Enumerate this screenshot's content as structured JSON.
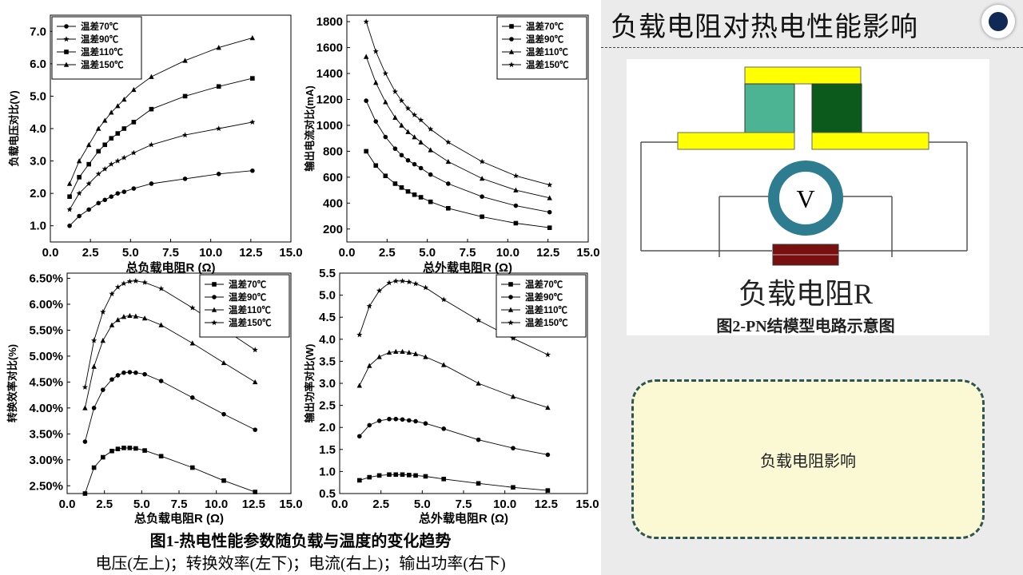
{
  "slide": {
    "title": "负载电阻对热电性能影响",
    "figure1_caption": "图1-热电性能参数随负载与温度的变化趋势",
    "figure1_subcaption": "电压(左上)；转换效率(左下)；电流(右上)；输出功率(右下)",
    "figure2_caption": "图2-PN结模型电路示意图",
    "load_label": "负载电阻R",
    "voltmeter_symbol": "V",
    "note_text": "负载电阻影响"
  },
  "colors": {
    "p_type": "#4cb493",
    "n_type": "#0c5a1c",
    "electrode": "#ffff00",
    "voltmeter_ring": "#2e7c8f",
    "load": "#781010",
    "title_dot": "#102a55",
    "note_fill": "#fbf8d4",
    "note_border": "#2c5557"
  },
  "chart_data": [
    {
      "type": "line",
      "ylabel": "负载电压对比(V)",
      "xlabel": "总负载电阻R (Ω)",
      "xlim": [
        0,
        15
      ],
      "ylim": [
        0.5,
        7.5
      ],
      "xticks": [
        0.0,
        2.5,
        5.0,
        7.5,
        10.0,
        12.5,
        15.0
      ],
      "yticks": [
        1.0,
        2.0,
        3.0,
        4.0,
        5.0,
        6.0,
        7.0
      ],
      "ytick_labels": [
        "1.0",
        "2.0",
        "3.0",
        "4.0",
        "5.0",
        "6.0",
        "7.0"
      ],
      "legend_position": "top-left",
      "x": [
        1.2,
        1.8,
        2.4,
        3.0,
        3.4,
        3.8,
        4.2,
        4.6,
        5.2,
        6.3,
        8.4,
        10.5,
        12.6
      ],
      "series": [
        {
          "name": "温差70℃",
          "marker": "circle",
          "values": [
            1.0,
            1.3,
            1.5,
            1.7,
            1.8,
            1.9,
            2.0,
            2.05,
            2.15,
            2.3,
            2.45,
            2.6,
            2.7
          ]
        },
        {
          "name": "温差90℃",
          "marker": "star",
          "values": [
            1.5,
            2.0,
            2.3,
            2.6,
            2.75,
            2.9,
            3.0,
            3.1,
            3.25,
            3.5,
            3.8,
            4.0,
            4.2
          ]
        },
        {
          "name": "温差110℃",
          "marker": "square",
          "values": [
            1.9,
            2.5,
            2.9,
            3.3,
            3.5,
            3.7,
            3.85,
            4.0,
            4.2,
            4.6,
            5.0,
            5.3,
            5.55
          ]
        },
        {
          "name": "温差150℃",
          "marker": "triangle",
          "values": [
            2.3,
            3.0,
            3.5,
            4.0,
            4.25,
            4.5,
            4.7,
            4.9,
            5.2,
            5.6,
            6.1,
            6.5,
            6.8
          ]
        }
      ]
    },
    {
      "type": "line",
      "ylabel": "输出电流对比(mA)",
      "xlabel": "总外载电阻R (Ω)",
      "xlim": [
        0,
        15
      ],
      "ylim": [
        100,
        1850
      ],
      "xticks": [
        0.0,
        2.5,
        5.0,
        7.5,
        10.0,
        12.5,
        15.0
      ],
      "yticks": [
        200,
        400,
        600,
        800,
        1000,
        1200,
        1400,
        1600,
        1800
      ],
      "ytick_labels": [
        "200",
        "400",
        "600",
        "800",
        "1000",
        "1200",
        "1400",
        "1600",
        "1800"
      ],
      "legend_position": "top-right",
      "x": [
        1.2,
        1.8,
        2.4,
        3.0,
        3.4,
        3.8,
        4.2,
        4.6,
        5.2,
        6.3,
        8.4,
        10.5,
        12.6
      ],
      "series": [
        {
          "name": "温差70℃",
          "marker": "square",
          "values": [
            800,
            690,
            610,
            550,
            520,
            490,
            465,
            445,
            410,
            360,
            295,
            245,
            210
          ]
        },
        {
          "name": "温差90℃",
          "marker": "circle",
          "values": [
            1190,
            1030,
            910,
            820,
            770,
            730,
            700,
            670,
            620,
            550,
            450,
            380,
            330
          ]
        },
        {
          "name": "温差110℃",
          "marker": "triangle",
          "values": [
            1530,
            1330,
            1180,
            1060,
            1000,
            950,
            910,
            870,
            810,
            720,
            590,
            500,
            440
          ]
        },
        {
          "name": "温差150℃",
          "marker": "star",
          "values": [
            1800,
            1570,
            1400,
            1260,
            1190,
            1130,
            1080,
            1040,
            970,
            870,
            720,
            610,
            540
          ]
        }
      ]
    },
    {
      "type": "line",
      "ylabel": "转换效率对比(%)",
      "xlabel": "总负载电阻R (Ω)",
      "xlim": [
        0,
        15
      ],
      "ylim": [
        2.35,
        6.6
      ],
      "xticks": [
        0.0,
        2.5,
        5.0,
        7.5,
        10.0,
        12.5,
        15.0
      ],
      "yticks": [
        2.5,
        3.0,
        3.5,
        4.0,
        4.5,
        5.0,
        5.5,
        6.0,
        6.5
      ],
      "ytick_labels": [
        "2.50%",
        "3.00%",
        "3.50%",
        "4.00%",
        "4.50%",
        "5.00%",
        "5.50%",
        "6.00%",
        "6.50%"
      ],
      "legend_position": "top-right",
      "x": [
        1.2,
        1.8,
        2.4,
        3.0,
        3.4,
        3.8,
        4.2,
        4.6,
        5.2,
        6.3,
        8.4,
        10.5,
        12.6
      ],
      "series": [
        {
          "name": "温差70℃",
          "marker": "square",
          "values": [
            2.35,
            2.85,
            3.05,
            3.17,
            3.21,
            3.23,
            3.23,
            3.22,
            3.18,
            3.07,
            2.85,
            2.6,
            2.38
          ]
        },
        {
          "name": "温差90℃",
          "marker": "circle",
          "values": [
            3.35,
            4.0,
            4.35,
            4.55,
            4.63,
            4.68,
            4.69,
            4.68,
            4.65,
            4.52,
            4.2,
            3.88,
            3.58
          ]
        },
        {
          "name": "温差110℃",
          "marker": "triangle",
          "values": [
            4.0,
            4.8,
            5.3,
            5.6,
            5.7,
            5.76,
            5.78,
            5.77,
            5.73,
            5.6,
            5.25,
            4.87,
            4.5
          ]
        },
        {
          "name": "温差150℃",
          "marker": "star",
          "values": [
            4.4,
            5.3,
            5.85,
            6.2,
            6.33,
            6.4,
            6.44,
            6.45,
            6.42,
            6.3,
            5.93,
            5.52,
            5.12
          ]
        }
      ]
    },
    {
      "type": "line",
      "ylabel": "输出功率对比(W)",
      "xlabel": "总外载电阻R (Ω)",
      "xlim": [
        0,
        15
      ],
      "ylim": [
        0.5,
        5.5
      ],
      "xticks": [
        0.0,
        2.5,
        5.0,
        7.5,
        10.0,
        12.5,
        15.0
      ],
      "yticks": [
        0.5,
        1.0,
        1.5,
        2.0,
        2.5,
        3.0,
        3.5,
        4.0,
        4.5,
        5.0,
        5.5
      ],
      "ytick_labels": [
        "0.5",
        "1.0",
        "1.5",
        "2.0",
        "2.5",
        "3.0",
        "3.5",
        "4.0",
        "4.5",
        "5.0",
        "5.5"
      ],
      "legend_position": "top-right",
      "x": [
        1.2,
        1.8,
        2.4,
        3.0,
        3.4,
        3.8,
        4.2,
        4.6,
        5.2,
        6.3,
        8.4,
        10.5,
        12.6
      ],
      "series": [
        {
          "name": "温差70℃",
          "marker": "square",
          "values": [
            0.8,
            0.87,
            0.91,
            0.93,
            0.93,
            0.93,
            0.92,
            0.91,
            0.89,
            0.83,
            0.73,
            0.64,
            0.57
          ]
        },
        {
          "name": "温差90℃",
          "marker": "circle",
          "values": [
            1.8,
            2.05,
            2.15,
            2.19,
            2.19,
            2.18,
            2.16,
            2.14,
            2.09,
            1.97,
            1.72,
            1.53,
            1.38
          ]
        },
        {
          "name": "温差110℃",
          "marker": "triangle",
          "values": [
            2.95,
            3.4,
            3.6,
            3.7,
            3.72,
            3.72,
            3.7,
            3.67,
            3.6,
            3.42,
            3.0,
            2.7,
            2.45
          ]
        },
        {
          "name": "温差150℃",
          "marker": "star",
          "values": [
            4.1,
            4.75,
            5.1,
            5.28,
            5.32,
            5.32,
            5.3,
            5.26,
            5.17,
            4.9,
            4.43,
            4.02,
            3.65
          ]
        }
      ]
    }
  ]
}
